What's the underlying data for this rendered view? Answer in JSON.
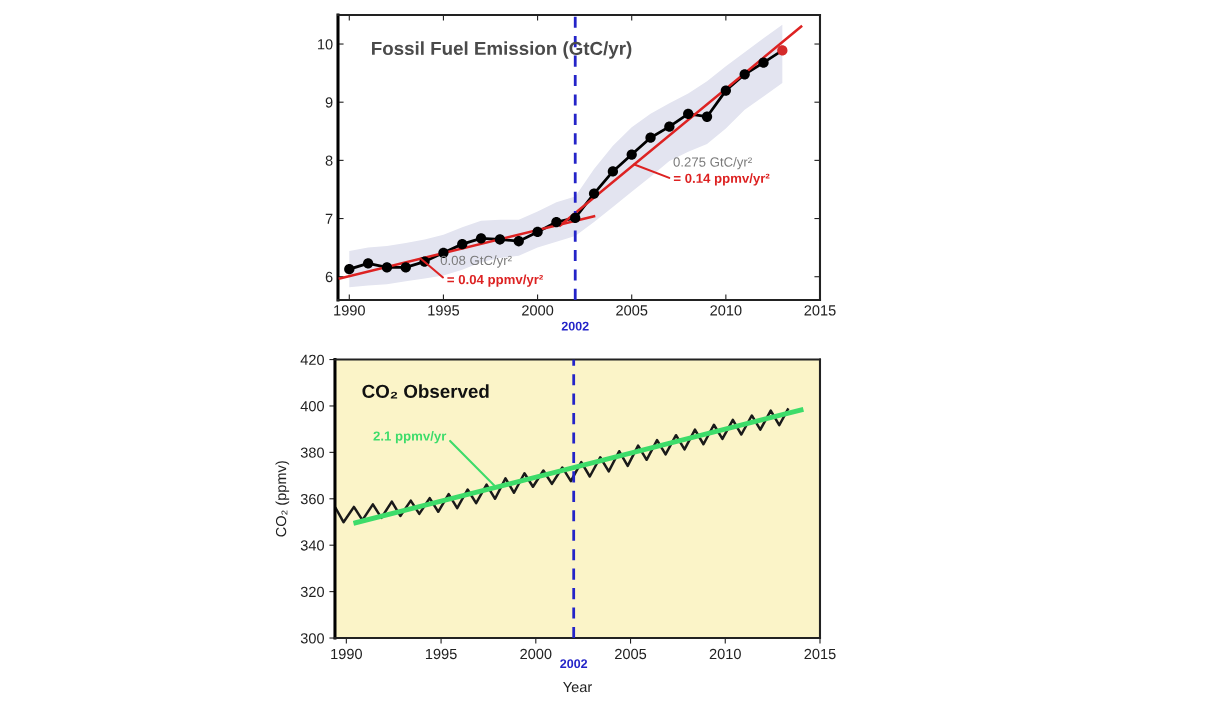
{
  "chart_data": [
    {
      "type": "line",
      "title": "Fossil Fuel Emission (GtC/yr)",
      "x": [
        1990,
        1991,
        1992,
        1993,
        1994,
        1995,
        1996,
        1997,
        1998,
        1999,
        2000,
        2001,
        2002,
        2003,
        2004,
        2005,
        2006,
        2007,
        2008,
        2009,
        2010,
        2011,
        2012,
        2013
      ],
      "series": [
        {
          "color": "#000000",
          "marker": "circle",
          "values": [
            6.13,
            6.23,
            6.16,
            6.16,
            6.26,
            6.41,
            6.56,
            6.66,
            6.64,
            6.61,
            6.77,
            6.94,
            7.01,
            7.43,
            7.81,
            8.1,
            8.39,
            8.58,
            8.8,
            8.75,
            9.2,
            9.48,
            9.68,
            9.89
          ],
          "lower": [
            5.82,
            5.85,
            5.87,
            5.92,
            5.97,
            6.02,
            6.12,
            6.25,
            6.32,
            6.36,
            6.5,
            6.6,
            6.7,
            6.94,
            7.2,
            7.46,
            7.72,
            7.99,
            8.15,
            8.28,
            8.55,
            8.87,
            9.1,
            9.33
          ],
          "upper": [
            6.44,
            6.5,
            6.53,
            6.58,
            6.64,
            6.72,
            6.85,
            6.96,
            6.98,
            6.98,
            7.12,
            7.28,
            7.38,
            7.85,
            8.25,
            8.57,
            8.8,
            8.98,
            9.15,
            9.36,
            9.62,
            9.86,
            10.1,
            10.33
          ],
          "colors": [
            "#000000",
            "#000000",
            "#000000",
            "#000000",
            "#000000",
            "#000000",
            "#000000",
            "#000000",
            "#000000",
            "#000000",
            "#000000",
            "#000000",
            "#000000",
            "#000000",
            "#000000",
            "#000000",
            "#000000",
            "#000000",
            "#000000",
            "#000000",
            "#000000",
            "#000000",
            "#000000",
            "#d42a2a"
          ]
        },
        {
          "color": "#dd2222",
          "x": [
            1989.5,
            2003.0
          ],
          "values": [
            5.97,
            7.04
          ]
        },
        {
          "color": "#dd2222",
          "x": [
            2001.2,
            2014.0
          ],
          "values": [
            6.88,
            10.3
          ]
        }
      ],
      "xlim": [
        1989.4,
        2015
      ],
      "xticks": [
        1990,
        1995,
        2000,
        2005,
        2010,
        2015
      ],
      "ylim": [
        5.6,
        10.5
      ],
      "yticks": [
        6,
        7,
        8,
        9,
        10
      ],
      "ref_lines": [
        {
          "axis": "x",
          "value": 2002,
          "label": "2002",
          "color": "#2424c8",
          "line_style": "dashed"
        }
      ],
      "annotations": [
        "0.08 GtC/yr²",
        {
          "text": "= 0.04 ppmv/yr²",
          "x": 1993.8,
          "y": 6.31
        },
        "0.275 GtC/yr²",
        {
          "text": "= 0.14 ppmv/yr²",
          "x": 2005.14,
          "y": 7.93
        }
      ]
    },
    {
      "type": "line",
      "title": "CO₂ Observed",
      "xlabel": "Year",
      "ylabel": "CO₂ (ppmv)",
      "series": [
        {
          "color": "#1a1a1a",
          "x": [
            1989.45,
            1989.85,
            1990.4,
            1990.85,
            1991.4,
            1991.85,
            1992.4,
            1992.85,
            1993.4,
            1993.85,
            1994.4,
            1994.85,
            1995.4,
            1995.85,
            1996.4,
            1996.85,
            1997.4,
            1997.85,
            1998.4,
            1998.85,
            1999.4,
            1999.85,
            2000.4,
            2000.85,
            2001.4,
            2001.85,
            2002.4,
            2002.85,
            2003.4,
            2003.85,
            2004.4,
            2004.85,
            2005.4,
            2005.85,
            2006.4,
            2006.85,
            2007.4,
            2007.85,
            2008.4,
            2008.85,
            2009.4,
            2009.85,
            2010.4,
            2010.85,
            2011.4,
            2011.85,
            2012.4,
            2012.85,
            2013.3
          ],
          "values": [
            355.8,
            349.9,
            356.5,
            350.8,
            357.6,
            351.8,
            358.8,
            352.6,
            359.2,
            353.5,
            360.3,
            354.4,
            362.0,
            356.0,
            364.0,
            358.1,
            366.1,
            360.0,
            368.8,
            362.6,
            371.0,
            365.2,
            372.2,
            366.4,
            373.5,
            367.6,
            375.8,
            369.6,
            377.9,
            371.8,
            380.5,
            374.2,
            382.9,
            376.8,
            385.3,
            379.1,
            387.4,
            381.3,
            389.8,
            383.5,
            391.9,
            385.8,
            394.0,
            387.7,
            395.9,
            389.8,
            398.0,
            391.7,
            398.5
          ]
        },
        {
          "color": "#3ddc6a",
          "x": [
            1990.5,
            2014.0
          ],
          "values": [
            349.7,
            398.3
          ]
        }
      ],
      "xlim": [
        1989.4,
        2015
      ],
      "xticks": [
        1990,
        1995,
        2000,
        2005,
        2010,
        2015
      ],
      "ylim": [
        300,
        420
      ],
      "yticks": [
        300,
        320,
        340,
        360,
        380,
        400,
        420
      ],
      "bands": [
        {
          "axis": "y",
          "from": 300,
          "to": 420,
          "color": "#fbf4c8"
        }
      ],
      "ref_lines": [
        {
          "axis": "x",
          "value": 2002,
          "label": "2002",
          "color": "#2424c8",
          "line_style": "dashed"
        }
      ],
      "annotations": [
        {
          "text": "2.1 ppmv/yr",
          "x": 1997.9,
          "y": 365.0
        }
      ]
    }
  ]
}
